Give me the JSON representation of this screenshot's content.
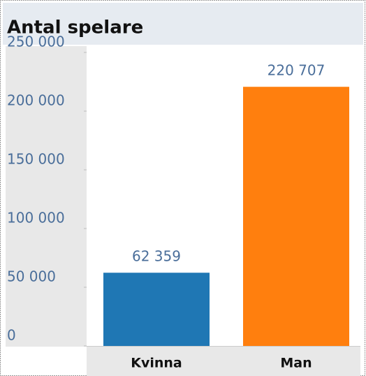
{
  "chart_data": {
    "type": "bar",
    "title": "Antal spelare",
    "categories": [
      "Kvinna",
      "Man"
    ],
    "values": [
      62359,
      220707
    ],
    "value_labels": [
      "62 359",
      "220 707"
    ],
    "colors": [
      "#1f77b4",
      "#ff7f0e"
    ],
    "ylim": [
      0,
      250000
    ],
    "yticks": [
      0,
      {
        "value": 50000,
        "label": "50 000"
      },
      {
        "value": 100000,
        "label": "100 000"
      },
      {
        "value": 150000,
        "label": "150 000"
      },
      {
        "value": 200000,
        "label": "200 000"
      },
      {
        "value": 250000,
        "label": "250 000"
      }
    ]
  }
}
